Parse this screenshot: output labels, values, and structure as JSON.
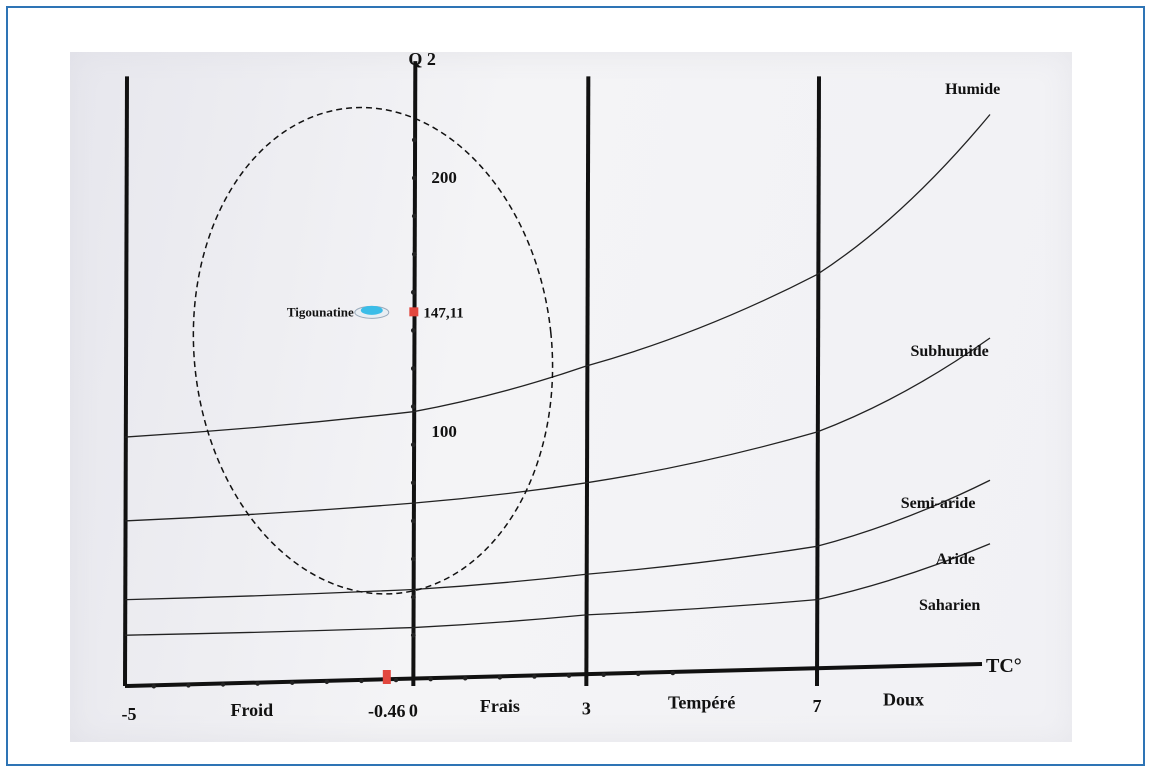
{
  "chart_data": {
    "type": "climatogram",
    "y_axis_label": "Q 2",
    "x_axis_label": "TC°",
    "ylim": [
      0,
      250
    ],
    "xlim": [
      -5,
      10
    ],
    "x_ticks": [
      {
        "value": -5,
        "label": "-5"
      },
      {
        "value": -0.46,
        "label": "-0.46"
      },
      {
        "value": 0,
        "label": "0"
      },
      {
        "value": 3,
        "label": "3"
      },
      {
        "value": 7,
        "label": "7"
      }
    ],
    "y_ticks": [
      {
        "value": 200,
        "label": "200"
      },
      {
        "value": 100,
        "label": "100"
      }
    ],
    "temperature_zones": [
      {
        "label": "Froid",
        "x": -2.8
      },
      {
        "label": "Frais",
        "x": 1.5
      },
      {
        "label": "Tempéré",
        "x": 5.0
      },
      {
        "label": "Doux",
        "x": 8.5
      }
    ],
    "vertical_lines": [
      -5,
      0,
      3,
      7
    ],
    "bioclimatic_boundaries": [
      {
        "label": "Humide",
        "x": [
          -5,
          0,
          3,
          7,
          10
        ],
        "y": [
          98,
          108,
          126,
          162,
          225
        ]
      },
      {
        "label": "Subhumide",
        "x": [
          -5,
          0,
          3,
          7,
          10
        ],
        "y": [
          65,
          72,
          80,
          100,
          137
        ]
      },
      {
        "label": "Semi-aride",
        "x": [
          -5,
          0,
          3,
          7,
          10
        ],
        "y": [
          34,
          38,
          44,
          55,
          81
        ]
      },
      {
        "label": "Aride",
        "x": [
          -5,
          0,
          3,
          7,
          10
        ],
        "y": [
          20,
          23,
          28,
          34,
          56
        ]
      }
    ],
    "zone_labels": [
      {
        "label": "Humide",
        "x": 9.7,
        "y": 233
      },
      {
        "label": "Subhumide",
        "x": 9.3,
        "y": 130
      },
      {
        "label": "Semi-aride",
        "x": 9.1,
        "y": 70
      },
      {
        "label": "Aride",
        "x": 9.4,
        "y": 48
      },
      {
        "label": "Saharien",
        "x": 9.3,
        "y": 30
      }
    ],
    "station": {
      "name": "Tigounatine",
      "x": -0.2,
      "y": 147.11,
      "value_label": "147,11"
    },
    "marker_x": -0.46,
    "ellipse": {
      "cx": -0.7,
      "cy": 132,
      "rx": 3.1,
      "ry": 96
    }
  }
}
